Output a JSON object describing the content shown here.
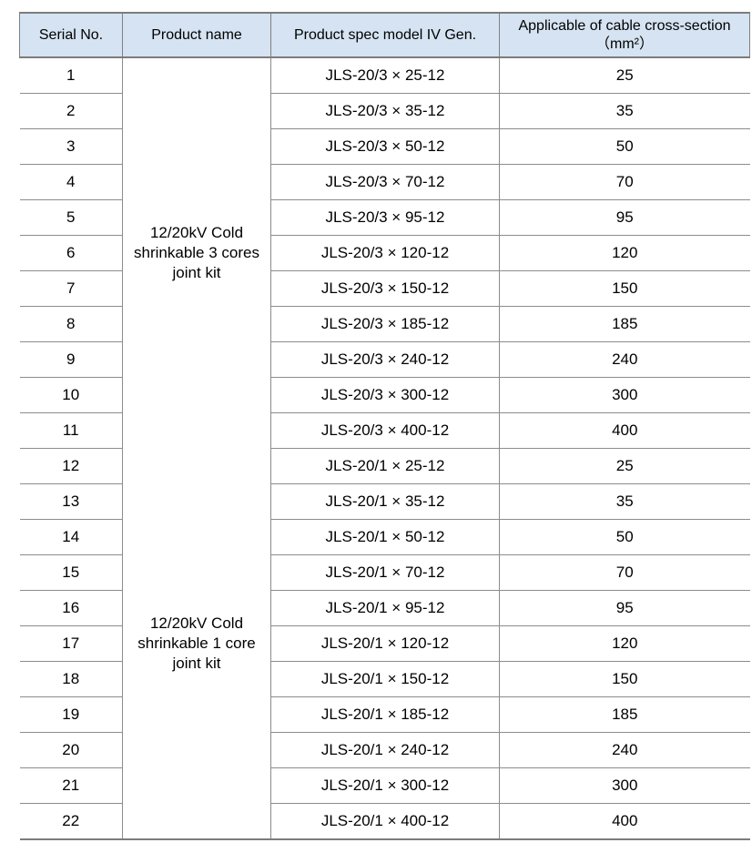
{
  "table": {
    "title": "cable-joint-kit-specification-table",
    "colors": {
      "header_background": "#d5e3f2",
      "grid_line": "#8c8c8c",
      "outer_line": "#7c7c7c",
      "text": "#000000"
    },
    "headers": [
      {
        "label": "Serial No."
      },
      {
        "label": "Product name"
      },
      {
        "label": "Product spec model IV Gen."
      },
      {
        "label": "Applicable of cable cross-section",
        "label_line2": "（mm²）"
      }
    ],
    "product_groups": [
      {
        "name": "12/20kV Cold shrinkable 3 cores joint kit",
        "rowspan": 11
      },
      {
        "name": "12/20kV Cold shrinkable 1 core joint kit",
        "rowspan": 11
      }
    ],
    "rows": [
      {
        "serial": "1",
        "model": "JLS-20/3 × 25-12",
        "cross_section": "25"
      },
      {
        "serial": "2",
        "model": "JLS-20/3 × 35-12",
        "cross_section": "35"
      },
      {
        "serial": "3",
        "model": "JLS-20/3 × 50-12",
        "cross_section": "50"
      },
      {
        "serial": "4",
        "model": "JLS-20/3 × 70-12",
        "cross_section": "70"
      },
      {
        "serial": "5",
        "model": "JLS-20/3 × 95-12",
        "cross_section": "95"
      },
      {
        "serial": "6",
        "model": "JLS-20/3 × 120-12",
        "cross_section": "120"
      },
      {
        "serial": "7",
        "model": "JLS-20/3 × 150-12",
        "cross_section": "150"
      },
      {
        "serial": "8",
        "model": "JLS-20/3 × 185-12",
        "cross_section": "185"
      },
      {
        "serial": "9",
        "model": "JLS-20/3 × 240-12",
        "cross_section": "240"
      },
      {
        "serial": "10",
        "model": "JLS-20/3 × 300-12",
        "cross_section": "300"
      },
      {
        "serial": "11",
        "model": "JLS-20/3 × 400-12",
        "cross_section": "400"
      },
      {
        "serial": "12",
        "model": "JLS-20/1 × 25-12",
        "cross_section": "25"
      },
      {
        "serial": "13",
        "model": "JLS-20/1 × 35-12",
        "cross_section": "35"
      },
      {
        "serial": "14",
        "model": "JLS-20/1 × 50-12",
        "cross_section": "50"
      },
      {
        "serial": "15",
        "model": "JLS-20/1 × 70-12",
        "cross_section": "70"
      },
      {
        "serial": "16",
        "model": "JLS-20/1 × 95-12",
        "cross_section": "95"
      },
      {
        "serial": "17",
        "model": "JLS-20/1 × 120-12",
        "cross_section": "120"
      },
      {
        "serial": "18",
        "model": "JLS-20/1 × 150-12",
        "cross_section": "150"
      },
      {
        "serial": "19",
        "model": "JLS-20/1 × 185-12",
        "cross_section": "185"
      },
      {
        "serial": "20",
        "model": "JLS-20/1 × 240-12",
        "cross_section": "240"
      },
      {
        "serial": "21",
        "model": "JLS-20/1 × 300-12",
        "cross_section": "300"
      },
      {
        "serial": "22",
        "model": "JLS-20/1 × 400-12",
        "cross_section": "400"
      }
    ]
  }
}
